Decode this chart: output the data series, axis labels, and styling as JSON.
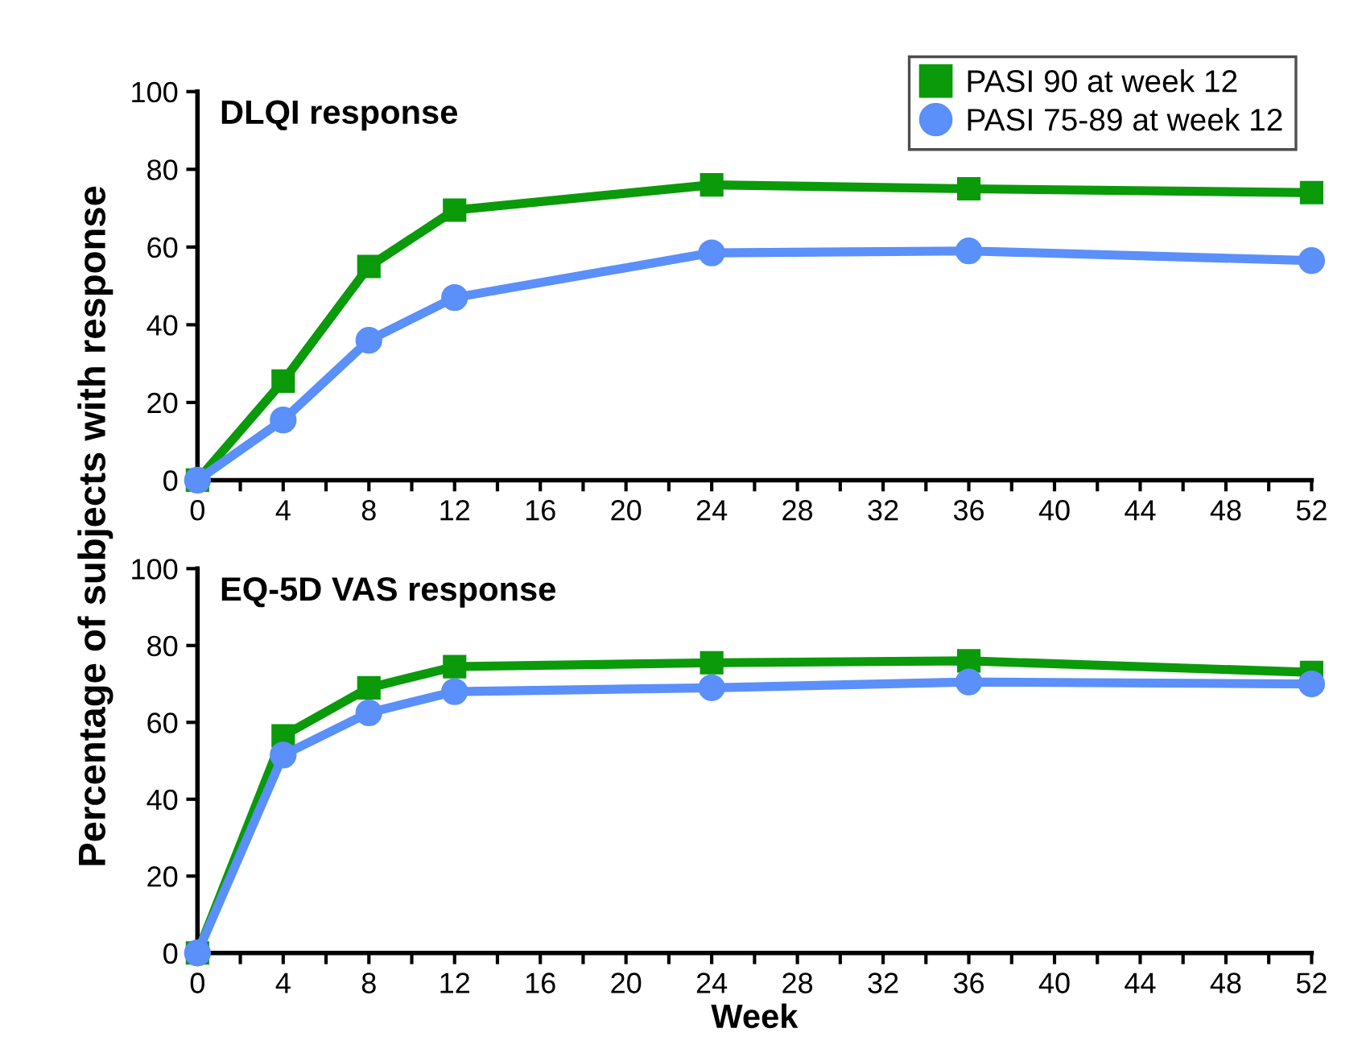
{
  "chart_data": [
    {
      "type": "line",
      "title": "DLQI response",
      "ylabel": "Percentage of subjects with response",
      "x": [
        0,
        4,
        8,
        12,
        24,
        36,
        52
      ],
      "series": [
        {
          "name": "PASI 90 at week 12",
          "color": "#0a9a0a",
          "marker": "square",
          "values": [
            0,
            25.5,
            55,
            69.5,
            76,
            75,
            74
          ]
        },
        {
          "name": "PASI 75-89 at week 12",
          "color": "#5b8ff9",
          "marker": "circle",
          "values": [
            0,
            15.5,
            36,
            47,
            58.5,
            59,
            56.5
          ]
        }
      ],
      "xlim": [
        0,
        52
      ],
      "ylim": [
        0,
        100
      ],
      "xticks": [
        0,
        {
          "value": 2,
          "label": null
        },
        4,
        {
          "value": 6,
          "label": null
        },
        8,
        {
          "value": 10,
          "label": null
        },
        12,
        {
          "value": 14,
          "label": null
        },
        16,
        {
          "value": 18,
          "label": null
        },
        20,
        {
          "value": 22,
          "label": null
        },
        24,
        {
          "value": 26,
          "label": null
        },
        28,
        {
          "value": 30,
          "label": null
        },
        32,
        {
          "value": 34,
          "label": null
        },
        36,
        {
          "value": 38,
          "label": null
        },
        40,
        {
          "value": 42,
          "label": null
        },
        44,
        {
          "value": 46,
          "label": null
        },
        48,
        {
          "value": 50,
          "label": null
        },
        52
      ],
      "yticks": [
        0,
        20,
        40,
        60,
        80,
        100
      ],
      "grid": false,
      "legend": "top right",
      "line_style": "solid"
    },
    {
      "type": "line",
      "title": "EQ-5D VAS response",
      "xlabel": "Week",
      "x": [
        0,
        4,
        8,
        12,
        24,
        36,
        52
      ],
      "series": [
        {
          "color": "#0a9a0a",
          "marker": "square",
          "values": [
            0,
            56.5,
            69,
            74.5,
            75.5,
            76,
            73
          ]
        },
        {
          "color": "#5b8ff9",
          "marker": "circle",
          "values": [
            0,
            51.5,
            62.5,
            68,
            69,
            70.5,
            70
          ]
        }
      ],
      "xlim": [
        0,
        52
      ],
      "ylim": [
        0,
        100
      ],
      "xticks": [
        0,
        {
          "value": 2,
          "label": null
        },
        4,
        {
          "value": 6,
          "label": null
        },
        8,
        {
          "value": 10,
          "label": null
        },
        12,
        {
          "value": 14,
          "label": null
        },
        16,
        {
          "value": 18,
          "label": null
        },
        20,
        {
          "value": 22,
          "label": null
        },
        24,
        {
          "value": 26,
          "label": null
        },
        28,
        {
          "value": 30,
          "label": null
        },
        32,
        {
          "value": 34,
          "label": null
        },
        36,
        {
          "value": 38,
          "label": null
        },
        40,
        {
          "value": 42,
          "label": null
        },
        44,
        {
          "value": 46,
          "label": null
        },
        48,
        {
          "value": 50,
          "label": null
        },
        52
      ],
      "yticks": [
        0,
        20,
        40,
        60,
        80,
        100
      ],
      "grid": false,
      "legend": false,
      "line_style": "solid"
    }
  ]
}
